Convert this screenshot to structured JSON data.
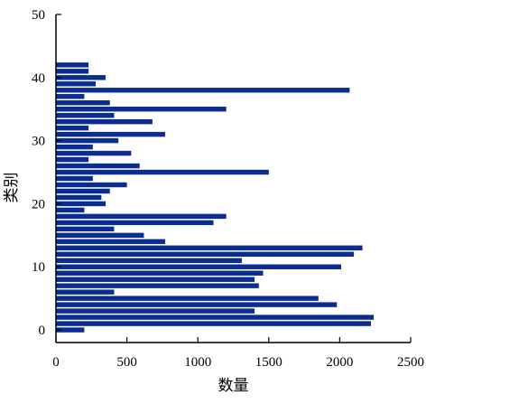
{
  "chart_data": {
    "type": "bar",
    "orientation": "horizontal",
    "xlabel": "数量",
    "ylabel": "类别",
    "xlim": [
      0,
      2500
    ],
    "ylim": [
      -2,
      50
    ],
    "x_ticks": [
      0,
      500,
      1000,
      1500,
      2000,
      2500
    ],
    "y_ticks": [
      0,
      10,
      20,
      30,
      40,
      50
    ],
    "grid": false,
    "bar_color": "#0b2d8f",
    "categories": [
      0,
      1,
      2,
      3,
      4,
      5,
      6,
      7,
      8,
      9,
      10,
      11,
      12,
      13,
      14,
      15,
      16,
      17,
      18,
      19,
      20,
      21,
      22,
      23,
      24,
      25,
      26,
      27,
      28,
      29,
      30,
      31,
      32,
      33,
      34,
      35,
      36,
      37,
      38,
      39,
      40,
      41,
      42,
      43
    ],
    "values": [
      200,
      2220,
      2240,
      1400,
      1980,
      1850,
      410,
      1430,
      1400,
      1460,
      2010,
      1310,
      2100,
      2160,
      770,
      620,
      410,
      1110,
      1200,
      200,
      350,
      320,
      380,
      500,
      260,
      1500,
      590,
      230,
      530,
      260,
      440,
      770,
      230,
      680,
      410,
      1200,
      380,
      200,
      2070,
      280,
      350,
      230,
      230,
      0
    ]
  }
}
